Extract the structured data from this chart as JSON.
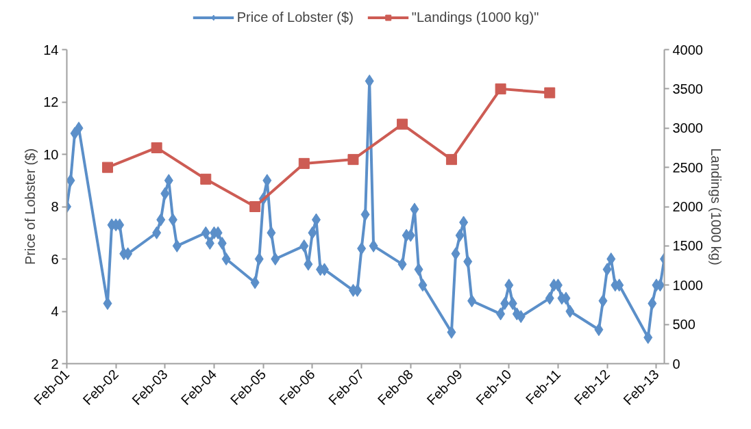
{
  "chart_data": {
    "type": "line",
    "ylabel": "Price of Lobster ($)",
    "y2label": "Landings (1000 kg)",
    "xlim": [
      "2001-02",
      "2013-04"
    ],
    "xticks": [
      {
        "value": "2001-02",
        "label": "Feb-01"
      },
      {
        "value": "2002-02",
        "label": "Feb-02"
      },
      {
        "value": "2003-02",
        "label": "Feb-03"
      },
      {
        "value": "2004-02",
        "label": "Feb-04"
      },
      {
        "value": "2005-02",
        "label": "Feb-05"
      },
      {
        "value": "2006-02",
        "label": "Feb-06"
      },
      {
        "value": "2007-02",
        "label": "Feb-07"
      },
      {
        "value": "2008-02",
        "label": "Feb-08"
      },
      {
        "value": "2009-02",
        "label": "Feb-09"
      },
      {
        "value": "2010-02",
        "label": "Feb-10"
      },
      {
        "value": "2011-02",
        "label": "Feb-11"
      },
      {
        "value": "2012-02",
        "label": "Feb-12"
      },
      {
        "value": "2013-02",
        "label": "Feb-13"
      }
    ],
    "ylim": [
      2,
      14
    ],
    "yticks": [
      2,
      4,
      6,
      8,
      10,
      12,
      14
    ],
    "y2lim": [
      0,
      4000
    ],
    "y2ticks": [
      0,
      500,
      1000,
      1500,
      2000,
      2500,
      3000,
      3500,
      4000
    ],
    "grid": false,
    "legend": "top",
    "line_style": "solid",
    "series": [
      {
        "name": "Price of Lobster ($)",
        "color": "#5b8fc9",
        "marker": "diamond",
        "x": [
          "2001-02",
          "2001-03",
          "2001-04",
          "2001-05",
          "2001-12",
          "2002-01",
          "2002-02",
          "2002-03",
          "2002-04",
          "2002-05",
          "2002-12",
          "2003-01",
          "2003-02",
          "2003-03",
          "2003-04",
          "2003-05",
          "2003-12",
          "2004-01",
          "2004-02",
          "2004-03",
          "2004-04",
          "2004-05",
          "2004-12",
          "2005-01",
          "2005-02",
          "2005-03",
          "2005-04",
          "2005-05",
          "2005-12",
          "2006-01",
          "2006-02",
          "2006-03",
          "2006-04",
          "2006-05",
          "2006-12",
          "2007-01",
          "2007-02",
          "2007-03",
          "2007-04",
          "2007-05",
          "2007-12",
          "2008-01",
          "2008-02",
          "2008-03",
          "2008-04",
          "2008-05",
          "2008-12",
          "2009-01",
          "2009-02",
          "2009-03",
          "2009-04",
          "2009-05",
          "2009-12",
          "2010-01",
          "2010-02",
          "2010-03",
          "2010-04",
          "2010-05",
          "2010-12",
          "2011-01",
          "2011-02",
          "2011-03",
          "2011-04",
          "2011-05",
          "2011-12",
          "2012-01",
          "2012-02",
          "2012-03",
          "2012-04",
          "2012-05",
          "2012-12",
          "2013-01",
          "2013-02",
          "2013-03",
          "2013-04"
        ],
        "values": [
          8.0,
          9.0,
          10.8,
          11.0,
          4.3,
          7.3,
          7.3,
          7.3,
          6.2,
          6.2,
          7.0,
          7.5,
          8.5,
          9.0,
          7.5,
          6.5,
          7.0,
          6.6,
          7.0,
          7.0,
          6.6,
          6.0,
          5.1,
          6.0,
          8.3,
          9.0,
          7.0,
          6.0,
          6.5,
          5.8,
          7.0,
          7.5,
          5.6,
          5.6,
          4.8,
          4.8,
          6.4,
          7.7,
          12.8,
          6.5,
          5.8,
          6.9,
          6.9,
          7.9,
          5.6,
          5.0,
          3.2,
          6.2,
          6.9,
          7.4,
          5.9,
          4.4,
          3.9,
          4.3,
          5.0,
          4.3,
          3.9,
          3.8,
          4.5,
          5.0,
          5.0,
          4.5,
          4.5,
          4.0,
          3.3,
          4.4,
          5.6,
          6.0,
          5.0,
          5.0,
          3.0,
          4.3,
          5.0,
          5.0,
          6.0
        ]
      },
      {
        "name": "\"Landings (1000 kg)\"",
        "color": "#cd5c54",
        "marker": "square",
        "axis": "y2",
        "x": [
          "2001-12",
          "2002-12",
          "2003-12",
          "2004-12",
          "2005-12",
          "2006-12",
          "2007-12",
          "2008-12",
          "2009-12",
          "2010-12"
        ],
        "values": [
          2500,
          2750,
          2350,
          2000,
          2550,
          2600,
          3050,
          2600,
          3500,
          3450
        ]
      }
    ]
  }
}
